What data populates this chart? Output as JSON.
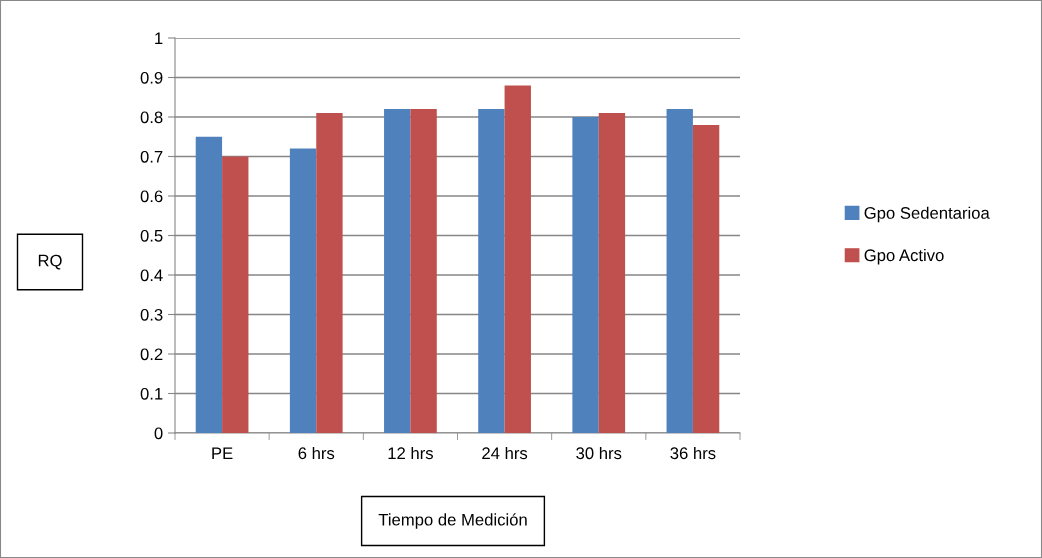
{
  "chart_data": {
    "type": "bar",
    "xlabel": "Tiempo de Medición",
    "ylabel": "RQ",
    "categories": [
      "PE",
      "6 hrs",
      "12 hrs",
      "24 hrs",
      "30 hrs",
      "36 hrs"
    ],
    "series": [
      {
        "name": "Gpo Sedentarioa",
        "color": "#4f81bd",
        "values": [
          0.75,
          0.72,
          0.82,
          0.82,
          0.8,
          0.82
        ]
      },
      {
        "name": "Gpo Activo",
        "color": "#c0504d",
        "values": [
          0.7,
          0.81,
          0.82,
          0.88,
          0.81,
          0.78
        ]
      }
    ],
    "ylim": [
      0,
      1
    ],
    "yticks": [
      0,
      0.1,
      0.2,
      0.3,
      0.4,
      0.5,
      0.6,
      0.7,
      0.8,
      0.9,
      1
    ],
    "grid": "y",
    "legend": "right"
  }
}
